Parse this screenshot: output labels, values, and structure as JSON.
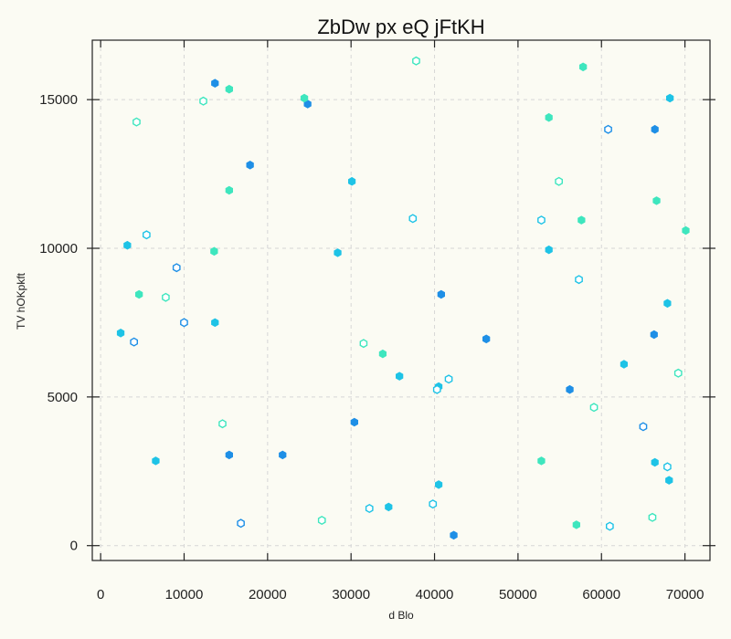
{
  "chart_data": {
    "type": "scatter",
    "title": "ZbDw px eQ jFtKH",
    "xlabel": "d Blo",
    "ylabel": "TV hOKpkft",
    "xlim": [
      -1000,
      73000
    ],
    "ylim": [
      -500,
      17000
    ],
    "xticks": [
      0,
      10000,
      20000,
      30000,
      40000,
      50000,
      60000,
      70000
    ],
    "yticks": [
      0,
      5000,
      10000,
      15000
    ],
    "grid": true,
    "colors": {
      "blue": "#1e8fe6",
      "cyan": "#1ec3e6",
      "aqua": "#3ee6be"
    },
    "points": [
      {
        "x": 13700,
        "y": 15550,
        "color": "blue",
        "filled": true
      },
      {
        "x": 24800,
        "y": 14850,
        "color": "blue",
        "filled": true
      },
      {
        "x": 17900,
        "y": 12800,
        "color": "blue",
        "filled": true
      },
      {
        "x": 40800,
        "y": 8450,
        "color": "blue",
        "filled": true
      },
      {
        "x": 46200,
        "y": 6950,
        "color": "blue",
        "filled": true
      },
      {
        "x": 30400,
        "y": 4150,
        "color": "blue",
        "filled": true
      },
      {
        "x": 21800,
        "y": 3050,
        "color": "blue",
        "filled": true
      },
      {
        "x": 15400,
        "y": 3050,
        "color": "blue",
        "filled": true
      },
      {
        "x": 42300,
        "y": 350,
        "color": "blue",
        "filled": true
      },
      {
        "x": 56200,
        "y": 5250,
        "color": "blue",
        "filled": true
      },
      {
        "x": 66300,
        "y": 7100,
        "color": "blue",
        "filled": true
      },
      {
        "x": 66400,
        "y": 14000,
        "color": "blue",
        "filled": true
      },
      {
        "x": 60800,
        "y": 14000,
        "color": "blue",
        "filled": false
      },
      {
        "x": 9100,
        "y": 9350,
        "color": "blue",
        "filled": false
      },
      {
        "x": 10000,
        "y": 7500,
        "color": "blue",
        "filled": false
      },
      {
        "x": 4000,
        "y": 6850,
        "color": "blue",
        "filled": false
      },
      {
        "x": 16800,
        "y": 750,
        "color": "blue",
        "filled": false
      },
      {
        "x": 65000,
        "y": 4000,
        "color": "blue",
        "filled": false
      },
      {
        "x": 3200,
        "y": 10100,
        "color": "cyan",
        "filled": true
      },
      {
        "x": 13700,
        "y": 7500,
        "color": "cyan",
        "filled": true
      },
      {
        "x": 2400,
        "y": 7150,
        "color": "cyan",
        "filled": true
      },
      {
        "x": 6600,
        "y": 2850,
        "color": "cyan",
        "filled": true
      },
      {
        "x": 30100,
        "y": 12250,
        "color": "cyan",
        "filled": true
      },
      {
        "x": 28400,
        "y": 9850,
        "color": "cyan",
        "filled": true
      },
      {
        "x": 35800,
        "y": 5700,
        "color": "cyan",
        "filled": true
      },
      {
        "x": 34500,
        "y": 1300,
        "color": "cyan",
        "filled": true
      },
      {
        "x": 40500,
        "y": 2050,
        "color": "cyan",
        "filled": true
      },
      {
        "x": 40500,
        "y": 5350,
        "color": "cyan",
        "filled": true
      },
      {
        "x": 53700,
        "y": 9950,
        "color": "cyan",
        "filled": true
      },
      {
        "x": 62700,
        "y": 6100,
        "color": "cyan",
        "filled": true
      },
      {
        "x": 66400,
        "y": 2800,
        "color": "cyan",
        "filled": true
      },
      {
        "x": 68100,
        "y": 2200,
        "color": "cyan",
        "filled": true
      },
      {
        "x": 67900,
        "y": 8150,
        "color": "cyan",
        "filled": true
      },
      {
        "x": 68200,
        "y": 15050,
        "color": "cyan",
        "filled": true
      },
      {
        "x": 5500,
        "y": 10450,
        "color": "cyan",
        "filled": false
      },
      {
        "x": 37400,
        "y": 11000,
        "color": "cyan",
        "filled": false
      },
      {
        "x": 52800,
        "y": 10950,
        "color": "cyan",
        "filled": false
      },
      {
        "x": 57300,
        "y": 8950,
        "color": "cyan",
        "filled": false
      },
      {
        "x": 41700,
        "y": 5600,
        "color": "cyan",
        "filled": false
      },
      {
        "x": 40300,
        "y": 5250,
        "color": "cyan",
        "filled": false
      },
      {
        "x": 39800,
        "y": 1400,
        "color": "cyan",
        "filled": false
      },
      {
        "x": 32200,
        "y": 1250,
        "color": "cyan",
        "filled": false
      },
      {
        "x": 61000,
        "y": 650,
        "color": "cyan",
        "filled": false
      },
      {
        "x": 67900,
        "y": 2650,
        "color": "cyan",
        "filled": false
      },
      {
        "x": 15400,
        "y": 15350,
        "color": "aqua",
        "filled": true
      },
      {
        "x": 24400,
        "y": 15050,
        "color": "aqua",
        "filled": true
      },
      {
        "x": 15400,
        "y": 11950,
        "color": "aqua",
        "filled": true
      },
      {
        "x": 13600,
        "y": 9900,
        "color": "aqua",
        "filled": true
      },
      {
        "x": 4600,
        "y": 8450,
        "color": "aqua",
        "filled": true
      },
      {
        "x": 33800,
        "y": 6450,
        "color": "aqua",
        "filled": true
      },
      {
        "x": 52800,
        "y": 2850,
        "color": "aqua",
        "filled": true
      },
      {
        "x": 57000,
        "y": 700,
        "color": "aqua",
        "filled": true
      },
      {
        "x": 53700,
        "y": 14400,
        "color": "aqua",
        "filled": true
      },
      {
        "x": 57800,
        "y": 16100,
        "color": "aqua",
        "filled": true
      },
      {
        "x": 66600,
        "y": 11600,
        "color": "aqua",
        "filled": true
      },
      {
        "x": 57600,
        "y": 10950,
        "color": "aqua",
        "filled": true
      },
      {
        "x": 70100,
        "y": 10600,
        "color": "aqua",
        "filled": true
      },
      {
        "x": 37800,
        "y": 16300,
        "color": "aqua",
        "filled": false
      },
      {
        "x": 4300,
        "y": 14250,
        "color": "aqua",
        "filled": false
      },
      {
        "x": 12300,
        "y": 14950,
        "color": "aqua",
        "filled": false
      },
      {
        "x": 7800,
        "y": 8350,
        "color": "aqua",
        "filled": false
      },
      {
        "x": 31500,
        "y": 6800,
        "color": "aqua",
        "filled": false
      },
      {
        "x": 14600,
        "y": 4100,
        "color": "aqua",
        "filled": false
      },
      {
        "x": 26500,
        "y": 850,
        "color": "aqua",
        "filled": false
      },
      {
        "x": 54900,
        "y": 12250,
        "color": "aqua",
        "filled": false
      },
      {
        "x": 59100,
        "y": 4650,
        "color": "aqua",
        "filled": false
      },
      {
        "x": 69200,
        "y": 5800,
        "color": "aqua",
        "filled": false
      },
      {
        "x": 66100,
        "y": 950,
        "color": "aqua",
        "filled": false
      }
    ]
  }
}
